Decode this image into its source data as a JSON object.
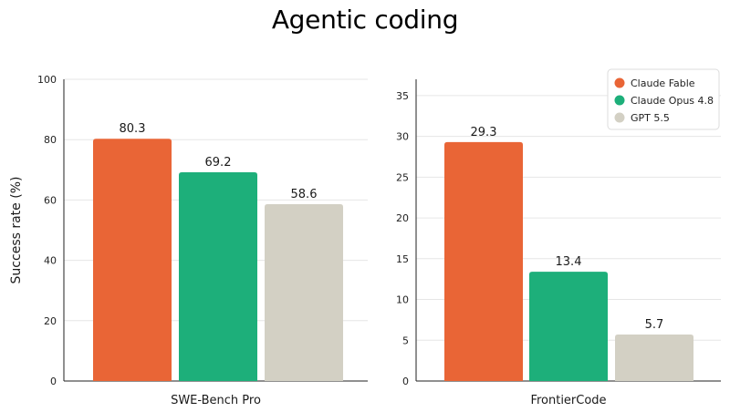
{
  "title": "Agentic coding",
  "legend": {
    "placement": "top-right",
    "items": [
      {
        "name": "Claude Fable",
        "color": "#E96536"
      },
      {
        "name": "Claude Opus 4.8",
        "color": "#1DAF7A"
      },
      {
        "name": "GPT 5.5",
        "color": "#D3D0C4"
      }
    ]
  },
  "chart_data": [
    {
      "type": "bar",
      "title": "",
      "xlabel": "SWE-Bench Pro",
      "ylabel": "Success rate (%)",
      "ylim": [
        0,
        100
      ],
      "yticks": [
        0,
        20,
        40,
        60,
        80,
        100
      ],
      "grid": true,
      "series": [
        {
          "name": "Claude Fable",
          "value": 80.3,
          "label": "80.3",
          "color": "#E96536"
        },
        {
          "name": "Claude Opus 4.8",
          "value": 69.2,
          "label": "69.2",
          "color": "#1DAF7A"
        },
        {
          "name": "GPT 5.5",
          "value": 58.6,
          "label": "58.6",
          "color": "#D3D0C4"
        }
      ]
    },
    {
      "type": "bar",
      "title": "",
      "xlabel": "FrontierCode",
      "ylabel": "",
      "ylim": [
        0,
        37
      ],
      "yticks": [
        0,
        5,
        10,
        15,
        20,
        25,
        30,
        35
      ],
      "grid": true,
      "series": [
        {
          "name": "Claude Fable",
          "value": 29.3,
          "label": "29.3",
          "color": "#E96536"
        },
        {
          "name": "Claude Opus 4.8",
          "value": 13.4,
          "label": "13.4",
          "color": "#1DAF7A"
        },
        {
          "name": "GPT 5.5",
          "value": 5.7,
          "label": "5.7",
          "color": "#D3D0C4"
        }
      ]
    }
  ]
}
